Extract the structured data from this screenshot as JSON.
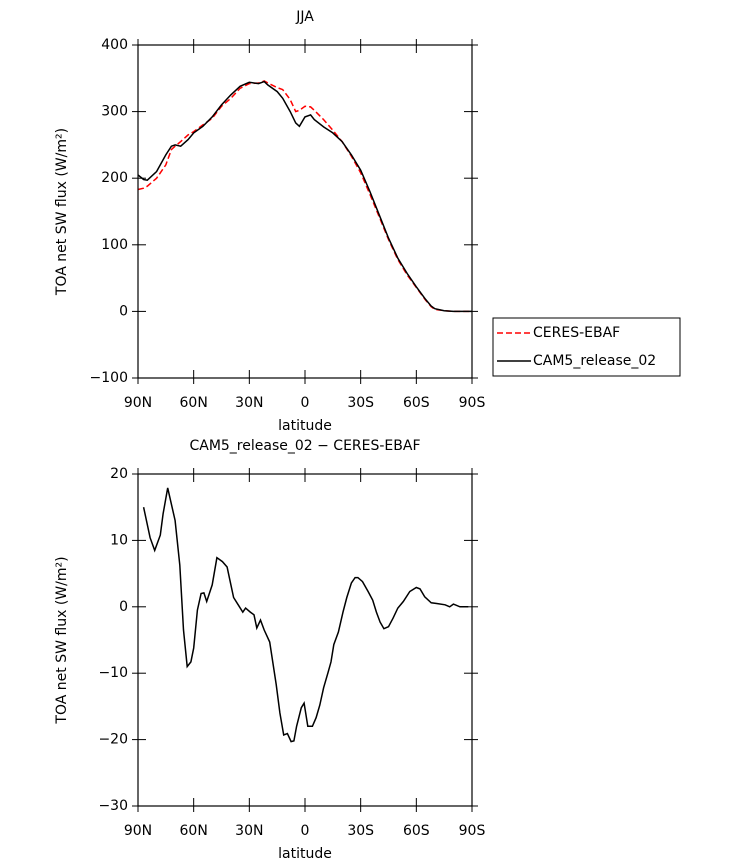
{
  "chart_data": [
    {
      "type": "line",
      "title": "JJA",
      "xlabel": "latitude",
      "ylabel": "TOA net SW flux (W/m²)",
      "x": [
        90,
        87,
        85,
        80,
        75,
        72,
        70,
        67,
        63,
        60,
        55,
        50,
        45,
        40,
        35,
        30,
        25,
        22,
        20,
        15,
        12,
        8,
        5,
        3,
        0,
        -3,
        -5,
        -10,
        -15,
        -20,
        -25,
        -30,
        -35,
        -40,
        -45,
        -50,
        -55,
        -60,
        -65,
        -68,
        -70,
        -75,
        -80,
        -85,
        -90
      ],
      "series": [
        {
          "name": "CERES-EBAF",
          "color": "#ff0000",
          "dashed": true,
          "values": [
            183,
            185,
            188,
            200,
            220,
            243,
            248,
            255,
            265,
            270,
            280,
            290,
            308,
            320,
            335,
            342,
            343,
            346,
            343,
            336,
            333,
            318,
            300,
            302,
            308,
            307,
            302,
            288,
            272,
            255,
            233,
            208,
            176,
            142,
            108,
            78,
            55,
            36,
            17,
            7,
            3,
            1,
            0,
            0,
            0
          ]
        },
        {
          "name": "CAM5_release_02",
          "color": "#000000",
          "dashed": false,
          "values": [
            205,
            198,
            197,
            210,
            235,
            248,
            250,
            248,
            258,
            268,
            278,
            292,
            310,
            325,
            338,
            344,
            342,
            345,
            340,
            330,
            320,
            300,
            283,
            278,
            292,
            295,
            288,
            277,
            268,
            255,
            235,
            212,
            180,
            145,
            110,
            80,
            57,
            37,
            18,
            8,
            4,
            1,
            0,
            0,
            0
          ]
        }
      ],
      "xlim": [
        90,
        -90
      ],
      "xticks": [
        {
          "value": 90,
          "label": "90N"
        },
        {
          "value": 60,
          "label": "60N"
        },
        {
          "value": 30,
          "label": "30N"
        },
        0,
        {
          "value": -30,
          "label": "30S"
        },
        {
          "value": -60,
          "label": "60S"
        },
        {
          "value": -90,
          "label": "90S"
        }
      ],
      "ylim": [
        -100,
        400
      ],
      "yticks": [
        {
          "value": -100,
          "label": "−100"
        },
        0,
        100,
        200,
        300,
        400
      ],
      "legend": "outside-right"
    },
    {
      "type": "line",
      "title": "CAM5_release_02 − CERES-EBAF",
      "xlabel": "latitude",
      "ylabel": "TOA net SW flux (W/m²)",
      "x": [
        87,
        83.5,
        81,
        78,
        76.5,
        74,
        70,
        67.5,
        65.5,
        63.5,
        61.5,
        60,
        58,
        56,
        54.5,
        53,
        50,
        47.5,
        44.5,
        42,
        40.5,
        38.5,
        36,
        33.5,
        32,
        29.5,
        27.5,
        26,
        24,
        22,
        19,
        15.5,
        13.5,
        11.5,
        9.5,
        7.5,
        6,
        4.5,
        2,
        0.5,
        -1.5,
        -4,
        -6,
        -8,
        -10,
        -12.5,
        -14,
        -15.5,
        -18,
        -20.5,
        -22.5,
        -25,
        -27,
        -28.5,
        -31,
        -34,
        -36.5,
        -38.5,
        -40.5,
        -42.5,
        -45,
        -47.5,
        -50,
        -53,
        -56.5,
        -60,
        -62,
        -64.5,
        -68,
        -71,
        -75.5,
        -78,
        -80,
        -83.5,
        -88
      ],
      "color": "#000000",
      "values": [
        15,
        10.4,
        8.5,
        10.8,
        14,
        17.9,
        13,
        6.3,
        -3.5,
        -9,
        -8.3,
        -6.2,
        -0.5,
        2,
        2.1,
        0.8,
        3.3,
        7.4,
        6.8,
        6,
        4,
        1.4,
        0.3,
        -0.8,
        -0.2,
        -0.8,
        -1.2,
        -3.2,
        -2,
        -3.5,
        -5.3,
        -11.7,
        -16,
        -19.3,
        -19.1,
        -20.3,
        -20.2,
        -18,
        -15.2,
        -14.5,
        -18,
        -18,
        -16.7,
        -14.8,
        -12.2,
        -9.8,
        -8.3,
        -5.7,
        -3.8,
        -0.8,
        1.4,
        3.6,
        4.4,
        4.4,
        3.8,
        2.3,
        1,
        -0.8,
        -2.3,
        -3.3,
        -3,
        -1.7,
        -0.2,
        0.8,
        2.3,
        2.9,
        2.7,
        1.5,
        0.6,
        0.5,
        0.3,
        0,
        0.4,
        0,
        0
      ],
      "xlim": [
        90,
        -90
      ],
      "xticks": [
        {
          "value": 90,
          "label": "90N"
        },
        {
          "value": 60,
          "label": "60N"
        },
        {
          "value": 30,
          "label": "30N"
        },
        0,
        {
          "value": -30,
          "label": "30S"
        },
        {
          "value": -60,
          "label": "60S"
        },
        {
          "value": -90,
          "label": "90S"
        }
      ],
      "ylim": [
        -30,
        20
      ],
      "yticks": [
        {
          "value": -30,
          "label": "−30"
        },
        {
          "value": -20,
          "label": "−20"
        },
        {
          "value": -10,
          "label": "−10"
        },
        0,
        10,
        20
      ]
    }
  ]
}
